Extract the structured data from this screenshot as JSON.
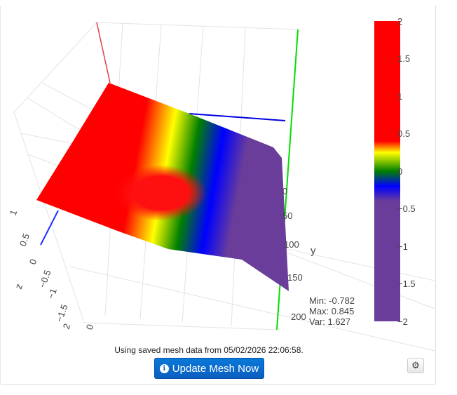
{
  "chart_data": {
    "type": "surface",
    "z_axis": {
      "label": "z",
      "ticks": [
        "1",
        "0.5",
        "0",
        "−0.5",
        "−1",
        "−1.5",
        "2"
      ]
    },
    "x_axis": {
      "ticks": [
        "0"
      ]
    },
    "y_axis": {
      "label": "y",
      "ticks": [
        "0",
        "50",
        "100",
        "150",
        "200"
      ]
    },
    "colorbar": {
      "range": [
        -2,
        2
      ],
      "ticks": [
        "2",
        "1.5",
        "1",
        "0.5",
        "0",
        "−0.5",
        "−1",
        "−1.5",
        "−2"
      ],
      "colorscale": [
        [
          -2,
          "#6a3d9a"
        ],
        [
          -0.4,
          "#6a3d9a"
        ],
        [
          -0.2,
          "#0000ff"
        ],
        [
          0,
          "#008000"
        ],
        [
          0.25,
          "#ffff00"
        ],
        [
          0.4,
          "#ff0000"
        ],
        [
          2,
          "#ff0000"
        ]
      ]
    },
    "stats": {
      "min": "Min: -0.782",
      "max": "Max: 0.845",
      "var": "Var: 1.627"
    }
  },
  "footer": {
    "message": "Using saved mesh data from 05/02/2026 22:06:58.",
    "update_button": "Update Mesh Now"
  }
}
